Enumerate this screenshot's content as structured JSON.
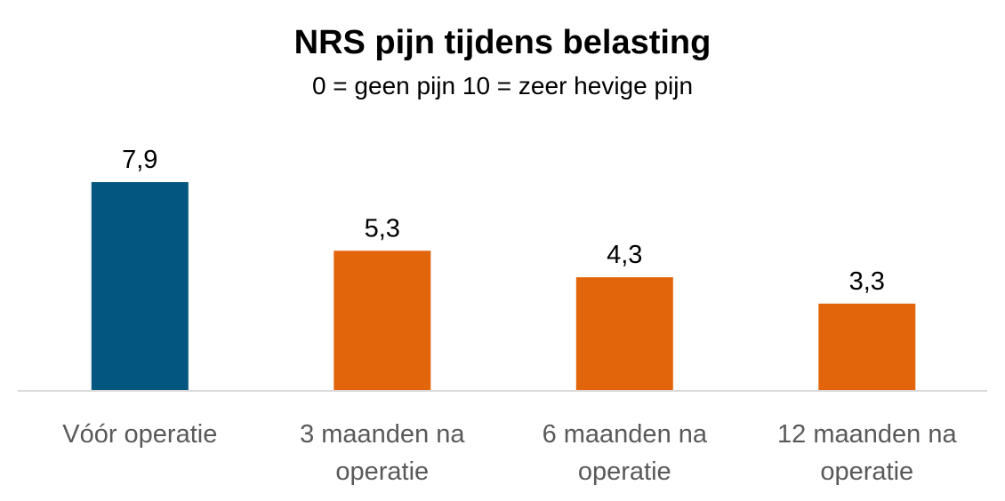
{
  "chart_data": {
    "type": "bar",
    "title": "NRS pijn tijdens belasting",
    "subtitle": "0 = geen pijn  10 = zeer hevige pijn",
    "categories": [
      [
        "Vóór operatie"
      ],
      [
        "3 maanden na",
        "operatie"
      ],
      [
        "6 maanden na",
        "operatie"
      ],
      [
        "12 maanden na",
        "operatie"
      ]
    ],
    "values": [
      7.9,
      5.3,
      4.3,
      3.3
    ],
    "value_labels": [
      "7,9",
      "5,3",
      "4,3",
      "3,3"
    ],
    "colors": [
      "#02567f",
      "#e2650c",
      "#e2650c",
      "#e2650c"
    ],
    "axis_color": "#d9d9d9",
    "ylim": [
      0,
      10
    ],
    "grid": false,
    "legend": "none"
  }
}
